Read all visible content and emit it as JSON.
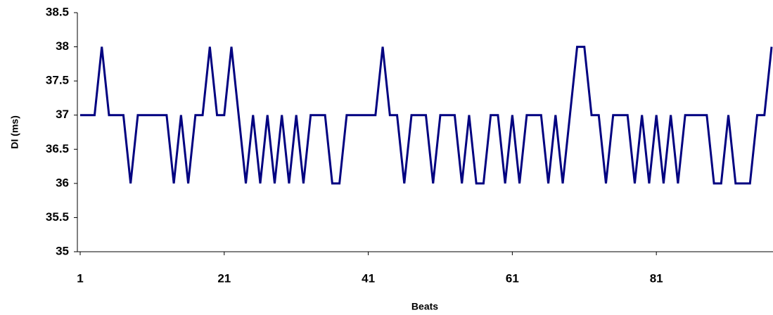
{
  "chart_data": {
    "type": "line",
    "x_label": "Beats",
    "y_label": "DI (ms)",
    "x": [
      1,
      2,
      3,
      4,
      5,
      6,
      7,
      8,
      9,
      10,
      11,
      12,
      13,
      14,
      15,
      16,
      17,
      18,
      19,
      20,
      21,
      22,
      23,
      24,
      25,
      26,
      27,
      28,
      29,
      30,
      31,
      32,
      33,
      34,
      35,
      36,
      37,
      38,
      39,
      40,
      41,
      42,
      43,
      44,
      45,
      46,
      47,
      48,
      49,
      50,
      51,
      52,
      53,
      54,
      55,
      56,
      57,
      58,
      59,
      60,
      61,
      62,
      63,
      64,
      65,
      66,
      67,
      68,
      69,
      70,
      71,
      72,
      73,
      74,
      75,
      76,
      77,
      78,
      79,
      80,
      81,
      82,
      83,
      84,
      85,
      86,
      87,
      88,
      89,
      90,
      91,
      92,
      93,
      94,
      95,
      96,
      97
    ],
    "series": [
      {
        "color": "#000080",
        "values": [
          37,
          37,
          37,
          38,
          37,
          37,
          37,
          36,
          37,
          37,
          37,
          37,
          37,
          36,
          37,
          36,
          37,
          37,
          38,
          37,
          37,
          38,
          37,
          36,
          37,
          36,
          37,
          36,
          37,
          36,
          37,
          36,
          37,
          37,
          37,
          36,
          36,
          37,
          37,
          37,
          37,
          37,
          38,
          37,
          37,
          36,
          37,
          37,
          37,
          36,
          37,
          37,
          37,
          36,
          37,
          36,
          36,
          37,
          37,
          36,
          37,
          36,
          37,
          37,
          37,
          36,
          37,
          36,
          37,
          38,
          38,
          37,
          37,
          36,
          37,
          37,
          37,
          36,
          37,
          36,
          37,
          36,
          37,
          36,
          37,
          37,
          37,
          37,
          36,
          36,
          37,
          36,
          36,
          36,
          37,
          37,
          38
        ]
      }
    ],
    "xlim": [
      1,
      97
    ],
    "xticks": [
      1,
      21,
      41,
      61,
      81
    ],
    "ylim": [
      35,
      38.5
    ],
    "yticks": [
      35,
      35.5,
      36,
      36.5,
      37,
      37.5,
      38,
      38.5
    ],
    "grid": false
  }
}
